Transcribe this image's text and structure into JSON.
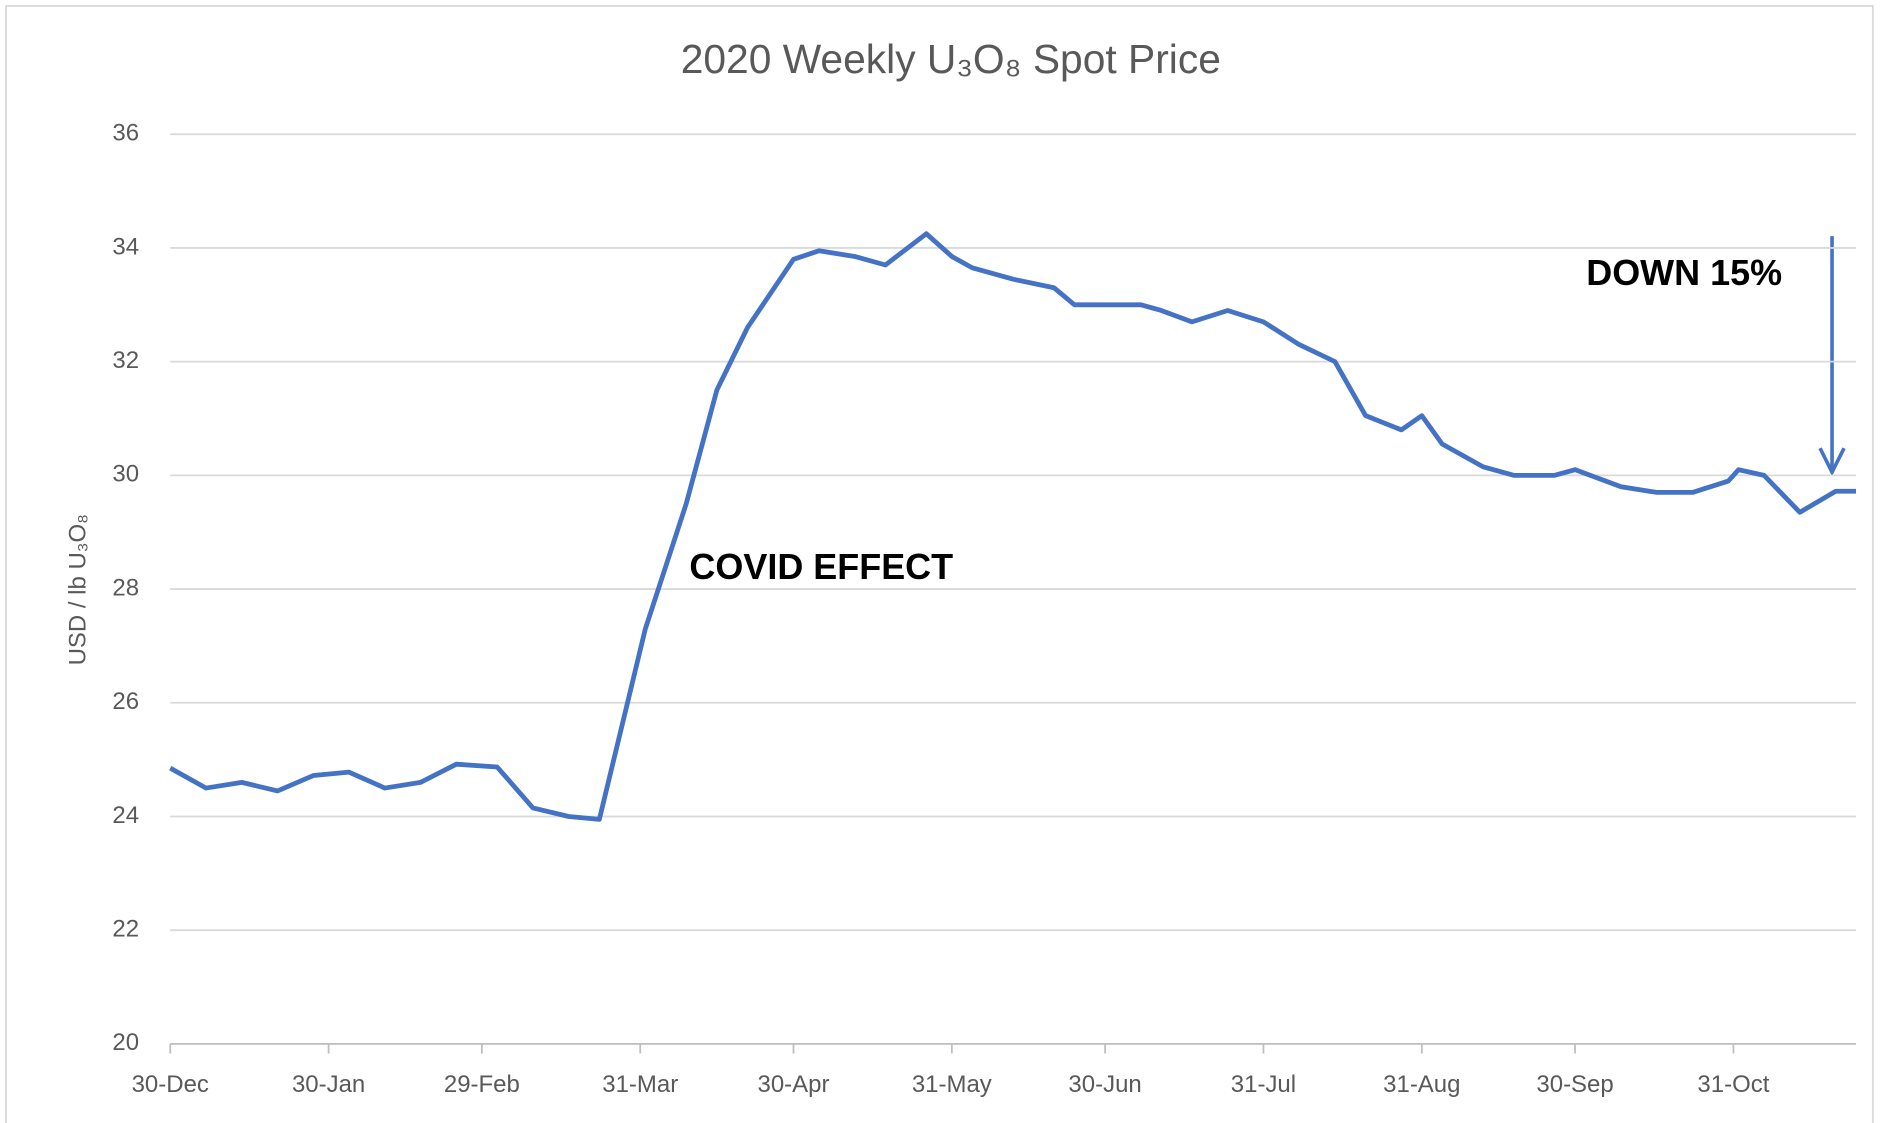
{
  "chart_data": {
    "type": "line",
    "title": "2020 Weekly U₃O₈ Spot Price",
    "y_label": "USD / lb U₃O₈",
    "annotations": [
      "COVID EFFECT",
      "DOWN 15%"
    ],
    "x": [
      0,
      7,
      14,
      21,
      28,
      35,
      42,
      49,
      56,
      64,
      71,
      78,
      84,
      93,
      101,
      107,
      113,
      122,
      127,
      134,
      140,
      148,
      153,
      157,
      165,
      173,
      177,
      190,
      194,
      200,
      207,
      214,
      221,
      228,
      234,
      241,
      245,
      249,
      257,
      263,
      271,
      275,
      278,
      284,
      291,
      298,
      305,
      307,
      312,
      319,
      326,
      330
    ],
    "series": [
      {
        "name": "U₃O₈ spot price",
        "color": "#4472c4",
        "values": [
          24.85,
          24.5,
          24.6,
          24.45,
          24.72,
          24.78,
          24.5,
          24.6,
          24.92,
          24.87,
          24.15,
          24.0,
          23.95,
          27.3,
          29.5,
          31.5,
          32.6,
          33.8,
          33.95,
          33.85,
          33.7,
          34.25,
          33.85,
          33.65,
          33.45,
          33.3,
          33.0,
          33.0,
          32.9,
          32.7,
          32.9,
          32.7,
          32.3,
          32.0,
          31.05,
          30.8,
          31.05,
          30.55,
          30.15,
          30.0,
          30.0,
          30.1,
          30.0,
          29.8,
          29.7,
          29.7,
          29.9,
          30.1,
          30.0,
          29.35,
          29.72,
          29.72
        ]
      }
    ],
    "xlim": [
      0,
      330
    ],
    "xticks": [
      {
        "value": 0,
        "label": "30-Dec"
      },
      {
        "value": 31,
        "label": "30-Jan"
      },
      {
        "value": 61,
        "label": "29-Feb"
      },
      {
        "value": 92,
        "label": "31-Mar"
      },
      {
        "value": 122,
        "label": "30-Apr"
      },
      {
        "value": 153,
        "label": "31-May"
      },
      {
        "value": 183,
        "label": "30-Jun"
      },
      {
        "value": 214,
        "label": "31-Jul"
      },
      {
        "value": 245,
        "label": "31-Aug"
      },
      {
        "value": 275,
        "label": "30-Sep"
      },
      {
        "value": 306,
        "label": "31-Oct"
      }
    ],
    "ylim": [
      20,
      36
    ],
    "yticks": [
      20,
      22,
      24,
      26,
      28,
      30,
      32,
      34,
      36
    ],
    "grid": true
  }
}
